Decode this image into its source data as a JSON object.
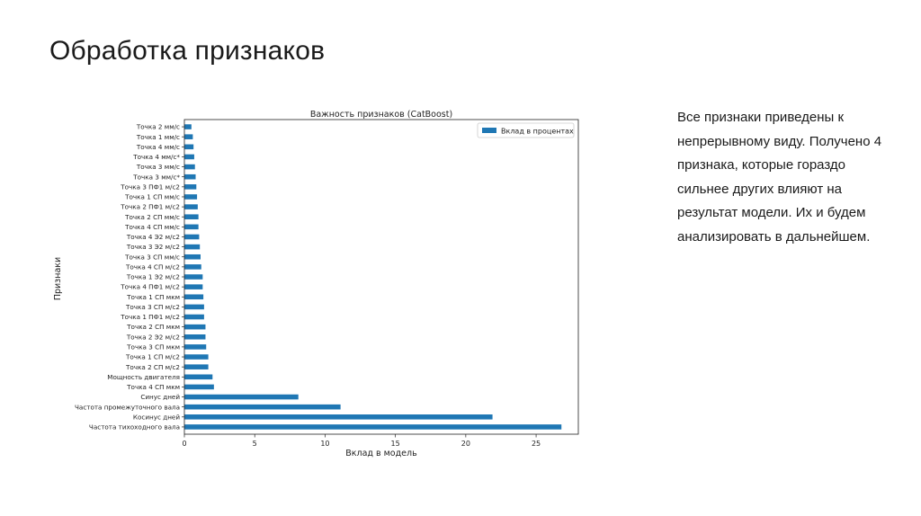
{
  "slide": {
    "title": "Обработка признаков",
    "body_text": "Все признаки приведены к непрерывному виду. Получено 4 признака, которые гораздо сильнее других влияют на результат модели. Их и будем анализировать в дальнейшем."
  },
  "chart_data": {
    "type": "bar",
    "orientation": "horizontal",
    "title": "Важность признаков (CatBoost)",
    "xlabel": "Вклад в модель",
    "ylabel": "Признаки",
    "xlim": [
      0,
      28
    ],
    "xticks": [
      0,
      5,
      10,
      15,
      20,
      25
    ],
    "grid": false,
    "legend_position": "top-right",
    "bar_color": "#1f77b4",
    "series": [
      {
        "name": "Вклад в процентах",
        "categories": [
          "Точка 2 мм/с",
          "Точка 1 мм/с",
          "Точка 4 мм/с",
          "Точка 4 мм/с*",
          "Точка 3 мм/с",
          "Точка 3 мм/с*",
          "Точка 3 ПФ1 м/с2",
          "Точка 1 СП мм/с",
          "Точка 2 ПФ1 м/с2",
          "Точка 2 СП мм/с",
          "Точка 4 СП мм/с",
          "Точка 4 Э2 м/с2",
          "Точка 3 Э2 м/с2",
          "Точка 3 СП мм/с",
          "Точка 4 СП м/с2",
          "Точка 1 Э2 м/с2",
          "Точка 4 ПФ1 м/с2",
          "Точка 1 СП мкм",
          "Точка 3 СП м/с2",
          "Точка 1 ПФ1 м/с2",
          "Точка 2 СП мкм",
          "Точка 2 Э2 м/с2",
          "Точка 3 СП мкм",
          "Точка 1 СП м/с2",
          "Точка 2 СП м/с2",
          "Мощность двигателя",
          "Точка 4 СП мкм",
          "Синус дней",
          "Частота промежуточного вала",
          "Косинус дней",
          "Частота тихоходного вала"
        ],
        "values": [
          0.5,
          0.6,
          0.65,
          0.7,
          0.75,
          0.8,
          0.85,
          0.9,
          0.95,
          1.0,
          1.0,
          1.05,
          1.1,
          1.15,
          1.2,
          1.3,
          1.3,
          1.35,
          1.4,
          1.4,
          1.5,
          1.5,
          1.55,
          1.7,
          1.7,
          2.0,
          2.1,
          8.1,
          11.1,
          21.9,
          26.8
        ]
      }
    ]
  }
}
